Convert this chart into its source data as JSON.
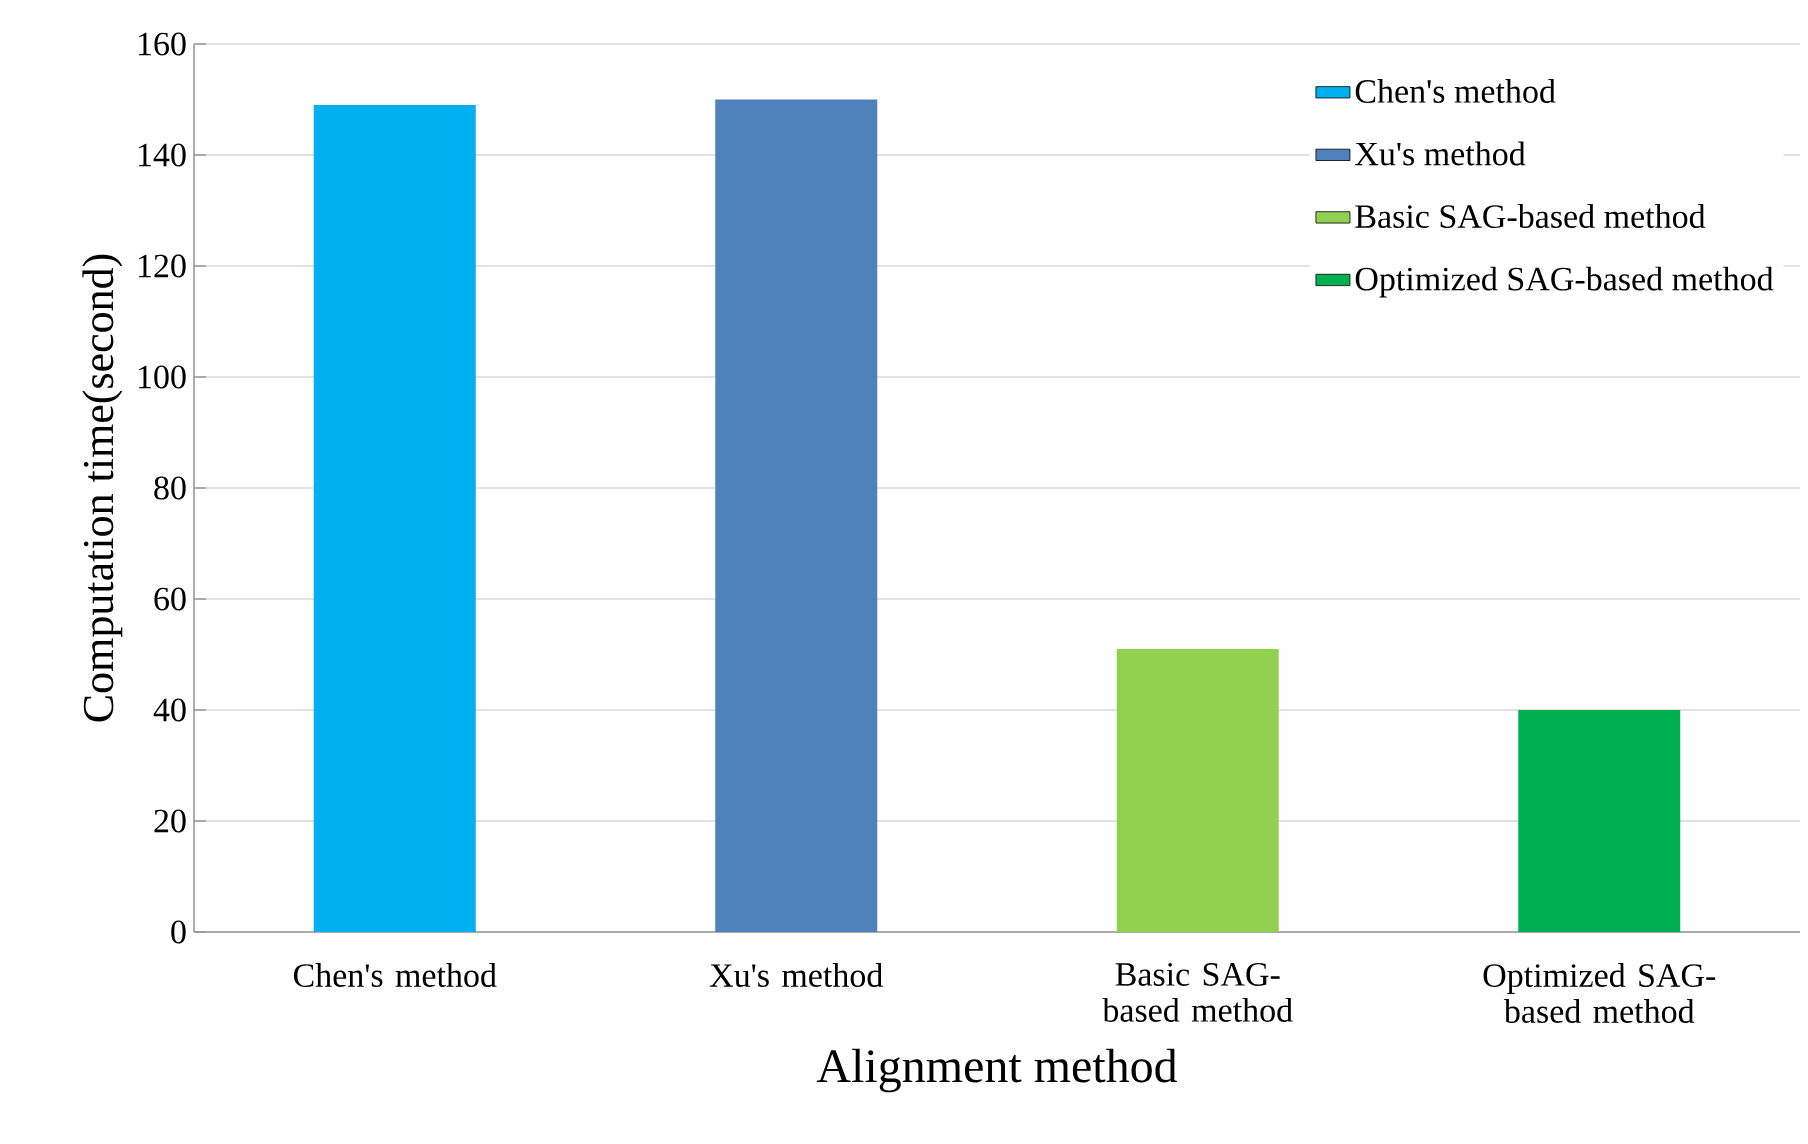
{
  "chart_data": {
    "type": "bar",
    "xlabel": "Alignment method",
    "ylabel": "Computation time(second)",
    "categories": [
      "Chen's method",
      "Xu's method",
      "Basic SAG-based method",
      "Optimized SAG-based method"
    ],
    "series": [
      {
        "name": "Chen's method",
        "color": "#00b0f0",
        "values": [
          149,
          null,
          null,
          null
        ]
      },
      {
        "name": "Xu's method",
        "color": "#4f81bd",
        "values": [
          null,
          150,
          null,
          null
        ]
      },
      {
        "name": "Basic SAG-based method",
        "color": "#92d050",
        "values": [
          null,
          null,
          51,
          null
        ]
      },
      {
        "name": "Optimized SAG-based method",
        "color": "#00b050",
        "values": [
          null,
          null,
          null,
          40
        ]
      }
    ],
    "ylim": [
      0,
      160
    ],
    "yticks": [
      0,
      20,
      40,
      60,
      80,
      100,
      120,
      140,
      160
    ],
    "grid": "y",
    "legend": "top right"
  }
}
